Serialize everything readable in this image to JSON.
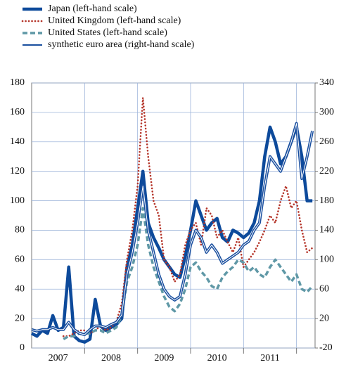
{
  "chart_data": {
    "type": "line",
    "x": [
      2007.0,
      2007.1,
      2007.2,
      2007.3,
      2007.4,
      2007.5,
      2007.6,
      2007.7,
      2007.8,
      2007.9,
      2008.0,
      2008.1,
      2008.2,
      2008.3,
      2008.4,
      2008.5,
      2008.6,
      2008.7,
      2008.8,
      2008.9,
      2009.0,
      2009.1,
      2009.2,
      2009.3,
      2009.4,
      2009.5,
      2009.6,
      2009.7,
      2009.8,
      2009.9,
      2010.0,
      2010.1,
      2010.2,
      2010.3,
      2010.4,
      2010.5,
      2010.6,
      2010.7,
      2010.8,
      2010.9,
      2011.0,
      2011.1,
      2011.2,
      2011.3,
      2011.4,
      2011.5,
      2011.6,
      2011.7,
      2011.8,
      2011.9,
      2012.0,
      2012.1,
      2012.2,
      2012.3
    ],
    "xlim": [
      2007,
      2012.35
    ],
    "xticks": [
      {
        "value": 2007.5,
        "label": "2007"
      },
      {
        "value": 2008.5,
        "label": "2008"
      },
      {
        "value": 2009.5,
        "label": "2009"
      },
      {
        "value": 2010.5,
        "label": "2010"
      },
      {
        "value": 2011.5,
        "label": "2011"
      }
    ],
    "ylim": [
      0,
      180
    ],
    "yticks": [
      0,
      20,
      40,
      60,
      80,
      100,
      120,
      140,
      160,
      180
    ],
    "y2lim": [
      -20,
      340
    ],
    "y2ticks": [
      -20,
      20,
      60,
      100,
      140,
      180,
      220,
      260,
      300,
      340
    ],
    "grid": true,
    "series": [
      {
        "name": "Japan (left-hand scale)",
        "color": "#0d4a9b",
        "style": "thick",
        "values": [
          10,
          8,
          12,
          10,
          22,
          12,
          14,
          55,
          8,
          5,
          4,
          6,
          33,
          15,
          12,
          14,
          16,
          20,
          55,
          70,
          95,
          120,
          85,
          75,
          68,
          60,
          55,
          50,
          48,
          62,
          80,
          100,
          90,
          80,
          85,
          88,
          75,
          72,
          80,
          78,
          75,
          78,
          85,
          100,
          130,
          150,
          140,
          125,
          130,
          140,
          150,
          130,
          100,
          100
        ]
      },
      {
        "name": "United Kingdom (left-hand scale)",
        "color": "#b5352a",
        "style": "dotted",
        "values": [
          null,
          null,
          null,
          null,
          null,
          null,
          8,
          8,
          10,
          12,
          12,
          10,
          12,
          15,
          12,
          14,
          18,
          30,
          60,
          80,
          110,
          170,
          130,
          100,
          90,
          60,
          55,
          45,
          50,
          70,
          80,
          85,
          70,
          95,
          90,
          75,
          80,
          72,
          65,
          75,
          55,
          60,
          65,
          72,
          80,
          90,
          85,
          100,
          110,
          95,
          100,
          80,
          65,
          68
        ]
      },
      {
        "name": "United States (left-hand scale)",
        "color": "#5f98a6",
        "style": "dashed",
        "values": [
          null,
          null,
          null,
          null,
          null,
          null,
          6,
          8,
          8,
          10,
          10,
          10,
          12,
          12,
          10,
          12,
          14,
          22,
          45,
          55,
          70,
          95,
          70,
          55,
          45,
          35,
          28,
          25,
          30,
          40,
          55,
          58,
          52,
          48,
          42,
          40,
          48,
          52,
          55,
          60,
          58,
          52,
          55,
          50,
          48,
          55,
          60,
          55,
          50,
          45,
          50,
          40,
          38,
          42
        ]
      },
      {
        "name": "synthetic euro area (right-hand scale)",
        "color": "#1a4f9f",
        "style": "thin",
        "axis": "y2",
        "values": [
          5,
          3,
          5,
          5,
          8,
          5,
          5,
          15,
          5,
          0,
          -2,
          5,
          10,
          10,
          8,
          12,
          15,
          25,
          80,
          110,
          150,
          200,
          140,
          110,
          80,
          60,
          50,
          45,
          50,
          80,
          120,
          140,
          130,
          110,
          120,
          110,
          95,
          100,
          105,
          110,
          120,
          125,
          140,
          150,
          200,
          240,
          230,
          220,
          240,
          260,
          285,
          210,
          240,
          275
        ]
      }
    ]
  }
}
